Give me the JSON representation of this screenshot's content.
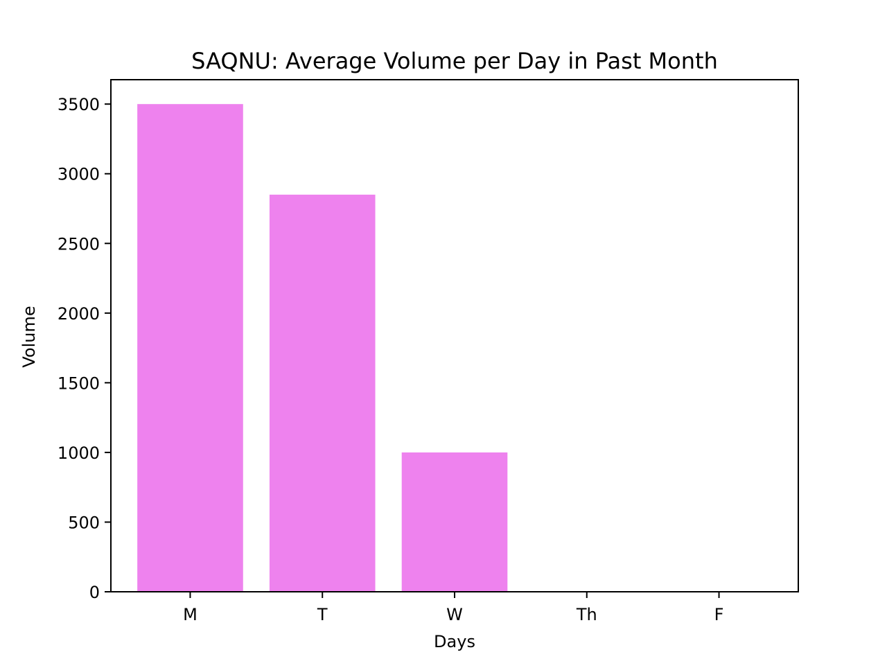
{
  "chart_data": {
    "type": "bar",
    "title": "SAQNU: Average Volume per Day in Past Month",
    "xlabel": "Days",
    "ylabel": "Volume",
    "categories": [
      "M",
      "T",
      "W",
      "Th",
      "F"
    ],
    "values": [
      3500,
      2850,
      1000,
      0,
      0
    ],
    "ylim": [
      0,
      3675
    ],
    "yticks": [
      0,
      500,
      1000,
      1500,
      2000,
      2500,
      3000,
      3500
    ],
    "ytick_labels": [
      "0",
      "500",
      "1000",
      "1500",
      "2000",
      "2500",
      "3000",
      "3500"
    ],
    "grid": false,
    "legend": "none",
    "bar_color": "#ee82ee"
  }
}
